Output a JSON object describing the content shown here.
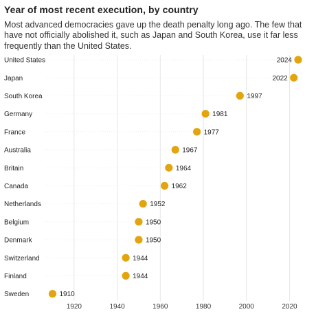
{
  "title": "Year of most recent execution, by country",
  "subtitle": "Most advanced democracies gave up the death penalty long ago. The few that have not officially abolished it, such as Japan and South Korea, use it far less frequently than the United States.",
  "colors": {
    "dot": "#E3A50F",
    "grid": "#E6E6E6",
    "text": "#222222"
  },
  "chart_data": {
    "type": "scatter",
    "title": "Year of most recent execution, by country",
    "subtitle": "Most advanced democracies gave up the death penalty long ago. The few that have not officially abolished it, such as Japan and South Korea, use it far less frequently than the United States.",
    "xlabel": "",
    "ylabel": "",
    "xlim": [
      1910,
      2024
    ],
    "xticks": [
      1920,
      1940,
      1960,
      1980,
      2000,
      2020
    ],
    "grid": true,
    "categories": [
      "United States",
      "Japan",
      "South Korea",
      "Germany",
      "France",
      "Australia",
      "Britain",
      "Canada",
      "Netherlands",
      "Belgium",
      "Denmark",
      "Switzerland",
      "Finland",
      "Sweden"
    ],
    "values": [
      2024,
      2022,
      1997,
      1981,
      1977,
      1967,
      1964,
      1962,
      1952,
      1950,
      1950,
      1944,
      1944,
      1910
    ]
  }
}
